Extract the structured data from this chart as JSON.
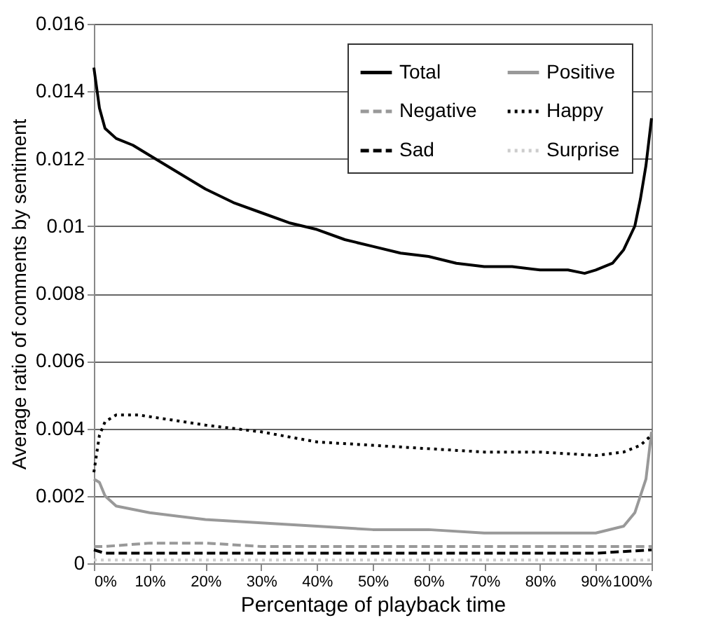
{
  "chart_data": {
    "type": "line",
    "xlabel": "Percentage of playback time",
    "ylabel": "Average ratio of comments by sentiment",
    "xlim": [
      0,
      100
    ],
    "ylim": [
      0,
      0.016
    ],
    "xticks": [
      {
        "value": 0,
        "label": "0%"
      },
      {
        "value": 10,
        "label": "10%"
      },
      {
        "value": 20,
        "label": "20%"
      },
      {
        "value": 30,
        "label": "30%"
      },
      {
        "value": 40,
        "label": "40%"
      },
      {
        "value": 50,
        "label": "50%"
      },
      {
        "value": 60,
        "label": "60%"
      },
      {
        "value": 70,
        "label": "70%"
      },
      {
        "value": 80,
        "label": "80%"
      },
      {
        "value": 90,
        "label": "90%"
      },
      {
        "value": 100,
        "label": "100%"
      }
    ],
    "yticks": [
      0,
      0.002,
      0.004,
      0.006,
      0.008,
      0.01,
      0.012,
      0.014,
      0.016
    ],
    "grid": "y",
    "legend": "top right",
    "marker": "none",
    "series": [
      {
        "name": "Total",
        "color": "#000000",
        "line_style": "solid",
        "x": [
          0,
          1,
          2,
          4,
          7,
          10,
          15,
          20,
          25,
          30,
          35,
          40,
          45,
          50,
          55,
          60,
          65,
          70,
          75,
          80,
          85,
          88,
          90,
          93,
          95,
          97,
          98,
          99,
          100
        ],
        "values": [
          0.0147,
          0.0135,
          0.0129,
          0.0126,
          0.0124,
          0.0121,
          0.0116,
          0.0111,
          0.0107,
          0.0104,
          0.0101,
          0.0099,
          0.0096,
          0.0094,
          0.0092,
          0.0091,
          0.0089,
          0.0088,
          0.0088,
          0.0087,
          0.0087,
          0.0086,
          0.0087,
          0.0089,
          0.0093,
          0.01,
          0.0108,
          0.0118,
          0.0132
        ]
      },
      {
        "name": "Positive",
        "color": "#999999",
        "line_style": "solid",
        "x": [
          0,
          1,
          2,
          4,
          10,
          20,
          30,
          40,
          50,
          60,
          70,
          80,
          90,
          95,
          97,
          99,
          100
        ],
        "values": [
          0.0025,
          0.0024,
          0.002,
          0.0017,
          0.0015,
          0.0013,
          0.0012,
          0.0011,
          0.001,
          0.001,
          0.0009,
          0.0009,
          0.0009,
          0.0011,
          0.0015,
          0.0025,
          0.0039
        ]
      },
      {
        "name": "Negative",
        "color": "#999999",
        "line_style": "dashed",
        "x": [
          0,
          2,
          10,
          20,
          30,
          40,
          50,
          60,
          70,
          80,
          90,
          100
        ],
        "values": [
          0.0005,
          0.0005,
          0.0006,
          0.0006,
          0.0005,
          0.0005,
          0.0005,
          0.0005,
          0.0005,
          0.0005,
          0.0005,
          0.0005
        ]
      },
      {
        "name": "Happy",
        "color": "#000000",
        "line_style": "dotted",
        "x": [
          0,
          1,
          2,
          4,
          8,
          12,
          20,
          30,
          40,
          50,
          60,
          70,
          80,
          90,
          95,
          98,
          100
        ],
        "values": [
          0.0027,
          0.0038,
          0.0042,
          0.0044,
          0.0044,
          0.0043,
          0.0041,
          0.0039,
          0.0036,
          0.0035,
          0.0034,
          0.0033,
          0.0033,
          0.0032,
          0.0033,
          0.0035,
          0.0038
        ]
      },
      {
        "name": "Sad",
        "color": "#000000",
        "line_style": "dashed",
        "x": [
          0,
          2,
          10,
          20,
          30,
          40,
          50,
          60,
          70,
          80,
          90,
          100
        ],
        "values": [
          0.0004,
          0.0003,
          0.0003,
          0.0003,
          0.0003,
          0.0003,
          0.0003,
          0.0003,
          0.0003,
          0.0003,
          0.0003,
          0.0004
        ]
      },
      {
        "name": "Surprise",
        "color": "#cccccc",
        "line_style": "dotted",
        "x": [
          0,
          10,
          20,
          30,
          40,
          50,
          60,
          70,
          80,
          90,
          100
        ],
        "values": [
          0.0001,
          0.0001,
          0.0001,
          0.0001,
          0.0001,
          0.0001,
          0.0001,
          0.0001,
          0.0001,
          0.0001,
          0.0001
        ]
      }
    ]
  }
}
